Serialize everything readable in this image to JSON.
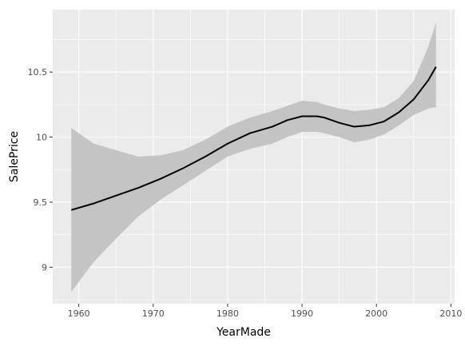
{
  "chart_data": {
    "type": "line",
    "xlabel": "YearMade",
    "ylabel": "SalePrice",
    "xlim": [
      1956.5,
      2010.5
    ],
    "ylim": [
      8.72,
      10.98
    ],
    "x_ticks": [
      1960,
      1970,
      1980,
      1990,
      2000,
      2010
    ],
    "x_tick_labels": [
      "1960",
      "1970",
      "1980",
      "1990",
      "2000",
      "2010"
    ],
    "y_ticks": [
      9,
      9.5,
      10,
      10.5
    ],
    "y_tick_labels": [
      "9",
      "9.5",
      "10",
      "10.5"
    ],
    "grid": true,
    "series": [
      {
        "x": [
          1959,
          1962,
          1965,
          1968,
          1971,
          1974,
          1977,
          1980,
          1983,
          1986,
          1988,
          1990,
          1992,
          1993,
          1995,
          1997,
          1999,
          2001,
          2003,
          2005,
          2007,
          2008
        ],
        "y": [
          9.44,
          9.49,
          9.55,
          9.61,
          9.68,
          9.76,
          9.85,
          9.95,
          10.03,
          10.08,
          10.13,
          10.16,
          10.16,
          10.15,
          10.11,
          10.08,
          10.09,
          10.12,
          10.19,
          10.29,
          10.44,
          10.54
        ],
        "lower": [
          8.81,
          9.04,
          9.22,
          9.39,
          9.52,
          9.63,
          9.74,
          9.85,
          9.91,
          9.95,
          10.0,
          10.04,
          10.04,
          10.03,
          10.0,
          9.96,
          9.98,
          10.02,
          10.09,
          10.17,
          10.22,
          10.23
        ],
        "upper": [
          10.07,
          9.95,
          9.9,
          9.85,
          9.86,
          9.9,
          9.98,
          10.08,
          10.15,
          10.2,
          10.24,
          10.28,
          10.27,
          10.25,
          10.22,
          10.2,
          10.21,
          10.23,
          10.3,
          10.43,
          10.7,
          10.88
        ]
      }
    ],
    "colors": {
      "panel": "#ebebeb",
      "grid_major": "#ffffff",
      "ribbon": "#c4c4c4",
      "line": "#000000"
    }
  }
}
